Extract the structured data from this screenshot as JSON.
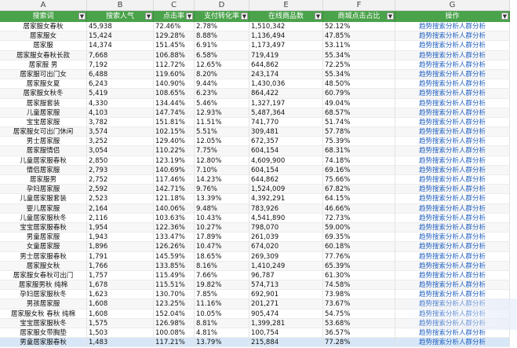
{
  "column_letters": [
    "A",
    "B",
    "C",
    "D",
    "E",
    "F",
    "G"
  ],
  "headers": [
    "搜索词",
    "搜索人气",
    "点击率",
    "支付转化率",
    "在线商品数",
    "商城点击占比",
    "操作"
  ],
  "action_label": "趋势搜索分析人群分析",
  "rows": [
    [
      "居家服女春秋",
      "45,938",
      "72.46%",
      "2.78%",
      "1,510,342",
      "52.12%"
    ],
    [
      "居家服女",
      "15,424",
      "129.28%",
      "8.88%",
      "1,136,494",
      "47.85%"
    ],
    [
      "居家服",
      "14,374",
      "151.45%",
      "6.91%",
      "1,173,497",
      "53.11%"
    ],
    [
      "居家服女春秋长款",
      "7,668",
      "106.88%",
      "6.58%",
      "719,419",
      "55.34%"
    ],
    [
      "居家服 男",
      "7,192",
      "112.72%",
      "12.65%",
      "644,862",
      "72.25%"
    ],
    [
      "居家服可出门女",
      "6,488",
      "119.60%",
      "8.20%",
      "243,174",
      "55.34%"
    ],
    [
      "居家服女夏",
      "6,243",
      "140.90%",
      "9.44%",
      "1,430,036",
      "48.50%"
    ],
    [
      "居家服女秋冬",
      "5,419",
      "108.65%",
      "6.23%",
      "864,422",
      "60.79%"
    ],
    [
      "居家服套装",
      "4,330",
      "134.44%",
      "5.46%",
      "1,327,197",
      "49.04%"
    ],
    [
      "儿童居家服",
      "4,103",
      "147.74%",
      "12.93%",
      "5,487,364",
      "68.57%"
    ],
    [
      "宝宝居家服",
      "3,782",
      "151.81%",
      "11.51%",
      "741,770",
      "51.74%"
    ],
    [
      "居家服女可出门休闲",
      "3,574",
      "102.15%",
      "5.51%",
      "309,481",
      "57.78%"
    ],
    [
      "男士居家服",
      "3,252",
      "129.40%",
      "12.05%",
      "672,357",
      "75.39%"
    ],
    [
      "居家服情侣",
      "3,054",
      "110.22%",
      "7.75%",
      "604,154",
      "68.31%"
    ],
    [
      "儿童居家服春秋",
      "2,850",
      "123.19%",
      "12.80%",
      "4,609,900",
      "74.18%"
    ],
    [
      "情侣居家服",
      "2,793",
      "140.69%",
      "7.10%",
      "604,154",
      "69.16%"
    ],
    [
      "居家服男",
      "2,752",
      "117.46%",
      "14.23%",
      "644,862",
      "75.66%"
    ],
    [
      "孕妇居家服",
      "2,592",
      "142.71%",
      "9.76%",
      "1,524,009",
      "67.82%"
    ],
    [
      "儿童居家服套装",
      "2,523",
      "121.18%",
      "13.39%",
      "4,392,291",
      "64.15%"
    ],
    [
      "婴儿居家服",
      "2,164",
      "140.06%",
      "9.48%",
      "783,926",
      "46.66%"
    ],
    [
      "儿童居家服秋冬",
      "2,116",
      "103.63%",
      "10.43%",
      "4,541,890",
      "72.73%"
    ],
    [
      "宝宝居家服春秋",
      "1,954",
      "122.36%",
      "10.27%",
      "798,070",
      "59.00%"
    ],
    [
      "男童居家服",
      "1,943",
      "133.47%",
      "17.89%",
      "261,039",
      "69.35%"
    ],
    [
      "女童居家服",
      "1,896",
      "126.26%",
      "10.47%",
      "674,020",
      "60.18%"
    ],
    [
      "男士居家服春秋",
      "1,791",
      "145.59%",
      "18.65%",
      "269,309",
      "77.76%"
    ],
    [
      "居家服女秋",
      "1,766",
      "133.85%",
      "8.16%",
      "1,410,249",
      "65.39%"
    ],
    [
      "居家服女春秋可出门",
      "1,757",
      "115.49%",
      "7.66%",
      "96,787",
      "61.30%"
    ],
    [
      "居家服男秋 纯棉",
      "1,678",
      "115.51%",
      "19.82%",
      "574,713",
      "74.58%"
    ],
    [
      "孕妇居家服秋冬",
      "1,623",
      "130.70%",
      "7.85%",
      "692,901",
      "73.98%"
    ],
    [
      "男孩居家服",
      "1,608",
      "123.25%",
      "11.16%",
      "201,271",
      "73.67%"
    ],
    [
      "居家服女秋 春秋 纯棉",
      "1,608",
      "152.04%",
      "10.05%",
      "905,474",
      "54.75%"
    ],
    [
      "宝宝居家服秋冬",
      "1,575",
      "126.98%",
      "8.81%",
      "1,399,281",
      "53.68%"
    ],
    [
      "居家服女带胸垫",
      "1,503",
      "100.08%",
      "4.81%",
      "100,754",
      "36.57%"
    ],
    [
      "男童居家服春秋",
      "1,483",
      "117.21%",
      "13.79%",
      "215,884",
      "77.28%"
    ]
  ]
}
